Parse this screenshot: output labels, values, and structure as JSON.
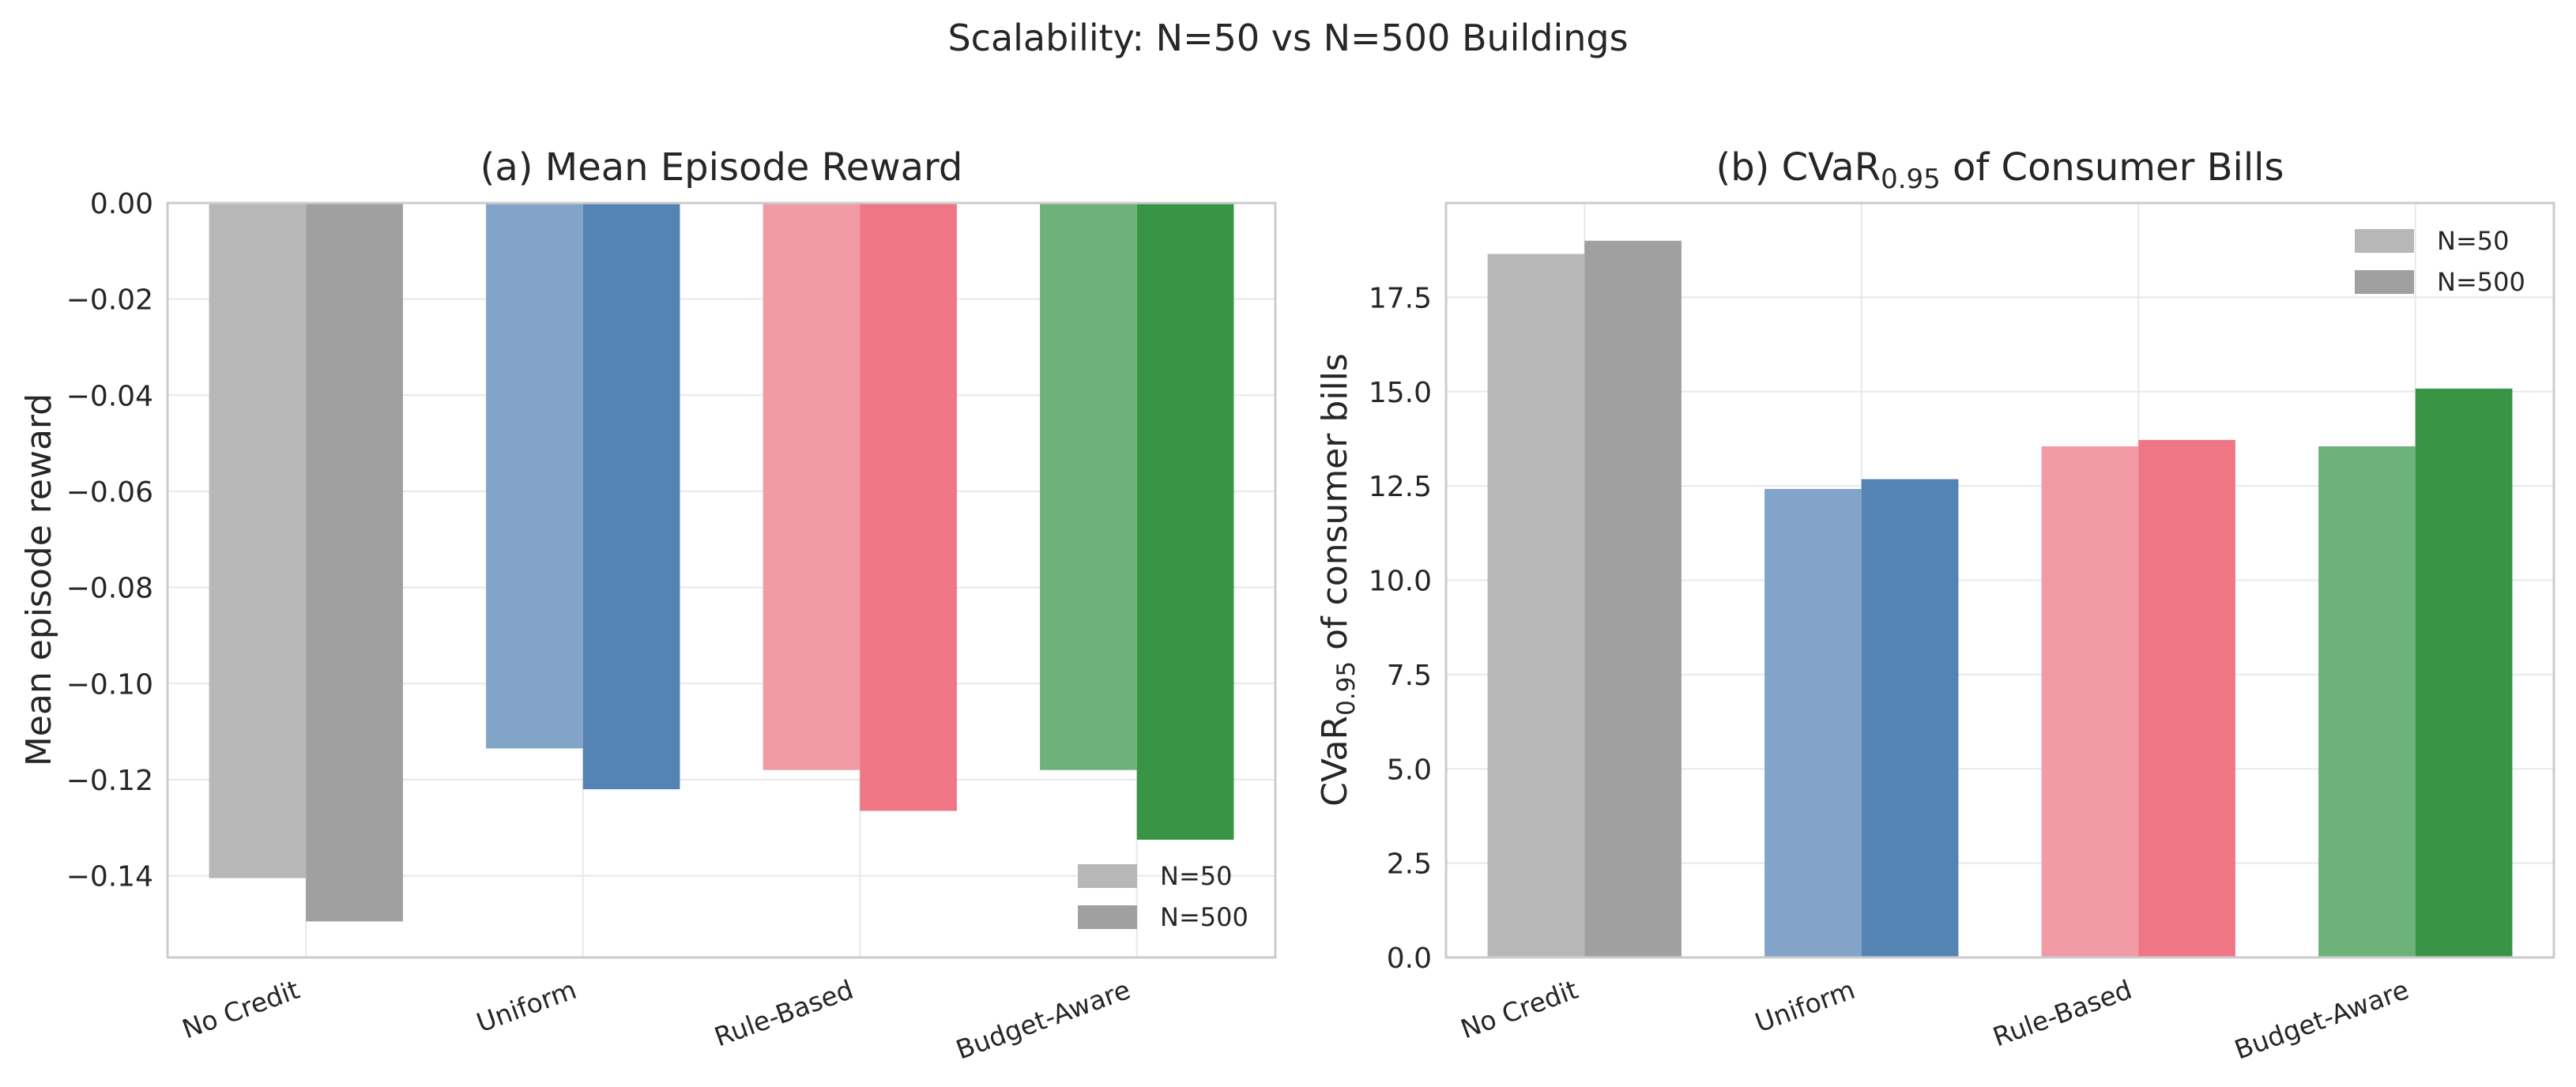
{
  "figure": {
    "suptitle": "Scalability: N=50 vs N=500 Buildings"
  },
  "legend_labels": [
    "N=50",
    "N=500"
  ],
  "chart_data": [
    {
      "type": "bar",
      "title": "(a) Mean Episode Reward",
      "xlabel": "",
      "ylabel": "Mean episode reward",
      "categories": [
        "No Credit",
        "Uniform",
        "Rule-Based",
        "Budget-Aware"
      ],
      "series": [
        {
          "name": "N=50",
          "values": [
            -0.1405,
            -0.1135,
            -0.118,
            -0.118
          ]
        },
        {
          "name": "N=500",
          "values": [
            -0.1495,
            -0.122,
            -0.1265,
            -0.1325
          ]
        }
      ],
      "ylim": [
        -0.157,
        0.0
      ],
      "yticks": [
        0.0,
        -0.02,
        -0.04,
        -0.06,
        -0.08,
        -0.1,
        -0.12,
        -0.14
      ],
      "ytick_labels": [
        "0.00",
        "−0.02",
        "−0.04",
        "−0.06",
        "−0.08",
        "−0.10",
        "−0.12",
        "−0.14"
      ],
      "grid": true,
      "legend_position": "lower-right"
    },
    {
      "type": "bar",
      "title": "(b) CVaR",
      "title_subscript": "0.95",
      "title_suffix": " of Consumer Bills",
      "xlabel": "",
      "ylabel": "CVaR",
      "ylabel_subscript": "0.95",
      "ylabel_suffix": " of consumer bills",
      "categories": [
        "No Credit",
        "Uniform",
        "Rule-Based",
        "Budget-Aware"
      ],
      "series": [
        {
          "name": "N=50",
          "values": [
            18.65,
            12.42,
            13.55,
            13.55
          ]
        },
        {
          "name": "N=500",
          "values": [
            19.0,
            12.68,
            13.72,
            15.08
          ]
        }
      ],
      "ylim": [
        0.0,
        20.0
      ],
      "yticks": [
        0.0,
        2.5,
        5.0,
        7.5,
        10.0,
        12.5,
        15.0,
        17.5
      ],
      "ytick_labels": [
        "0.0",
        "2.5",
        "5.0",
        "7.5",
        "10.0",
        "12.5",
        "15.0",
        "17.5"
      ],
      "grid": true,
      "legend_position": "upper-right"
    }
  ],
  "colors": {
    "series_n50": [
      "#b7b7b7",
      "#83a4c9",
      "#f29aa6",
      "#6eb27b"
    ],
    "series_n500": [
      "#a0a0a0",
      "#5583b4",
      "#ef7685",
      "#3a9446"
    ],
    "legend_n50": "#b7b7b7",
    "legend_n500": "#a0a0a0",
    "grid": "#e8e8e8",
    "spine": "#cccccc"
  }
}
